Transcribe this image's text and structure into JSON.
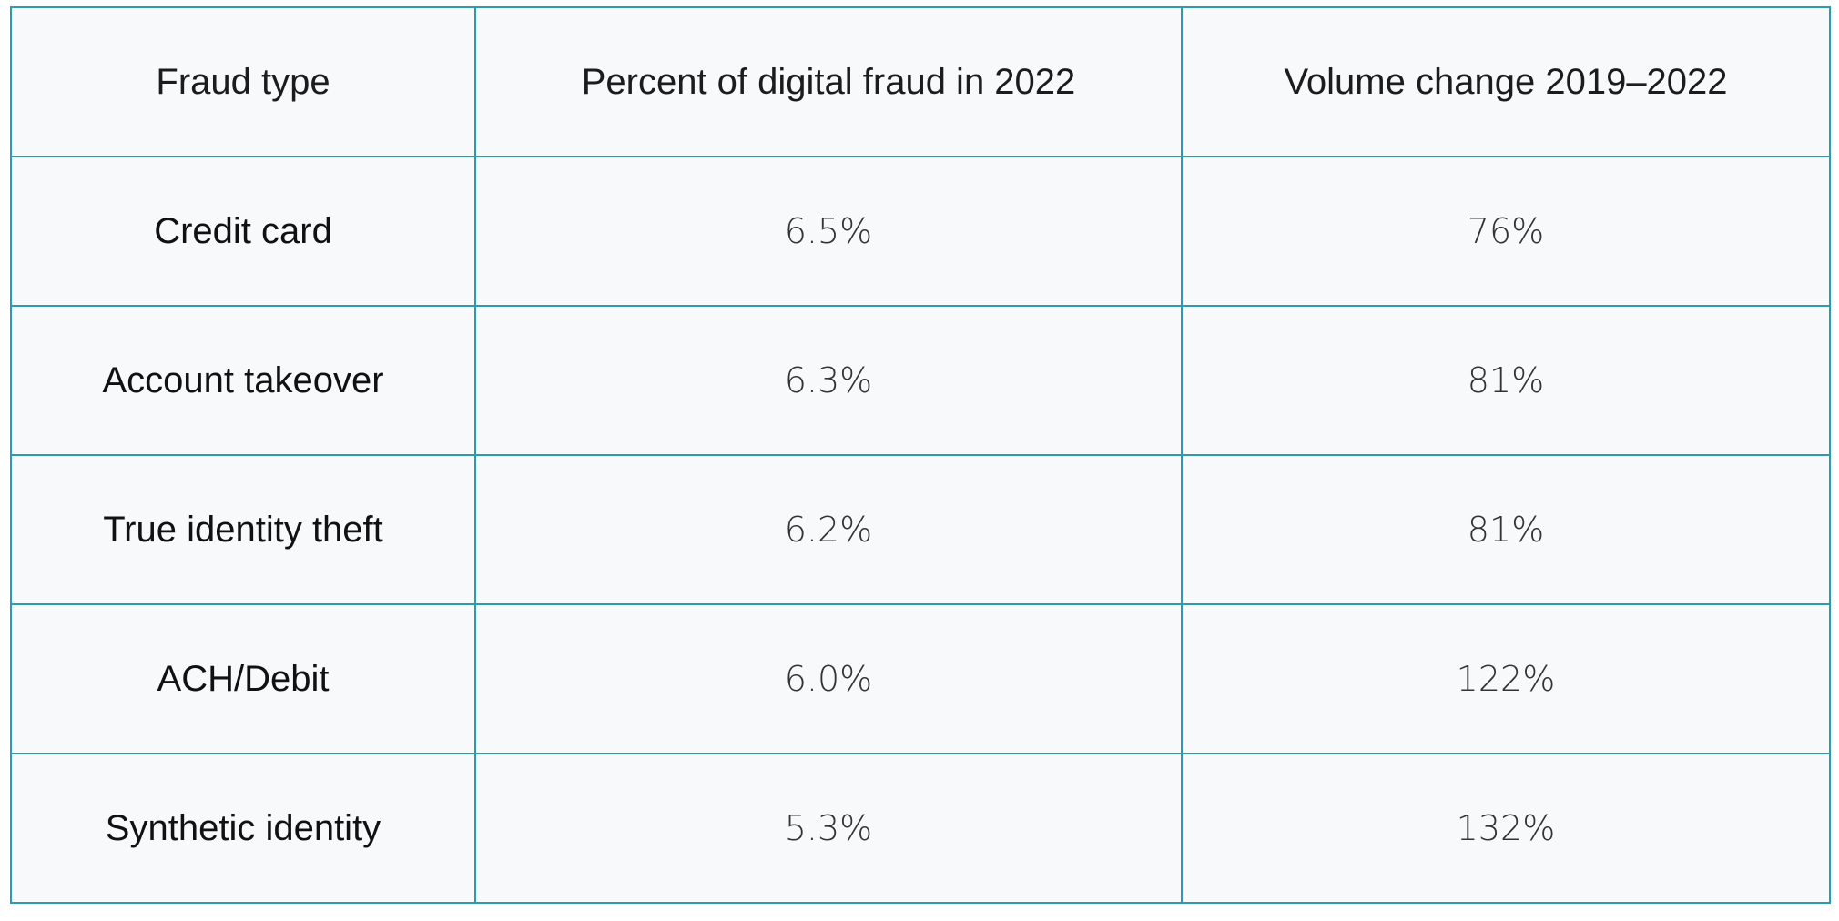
{
  "chart_data": {
    "type": "table",
    "columns": [
      "Fraud type",
      "Percent of digital fraud in 2022",
      "Volume change 2019–2022"
    ],
    "rows": [
      [
        "Credit card",
        "6.5%",
        "76%"
      ],
      [
        "Account takeover",
        "6.3%",
        "81%"
      ],
      [
        "True identity theft",
        "6.2%",
        "81%"
      ],
      [
        "ACH/Debit",
        "6.0%",
        "122%"
      ],
      [
        "Synthetic identity",
        "5.3%",
        "132%"
      ]
    ]
  },
  "colors": {
    "border": "#2a9bb0",
    "cell_background": "#f7f9fa",
    "text": "#1c1c1c"
  }
}
